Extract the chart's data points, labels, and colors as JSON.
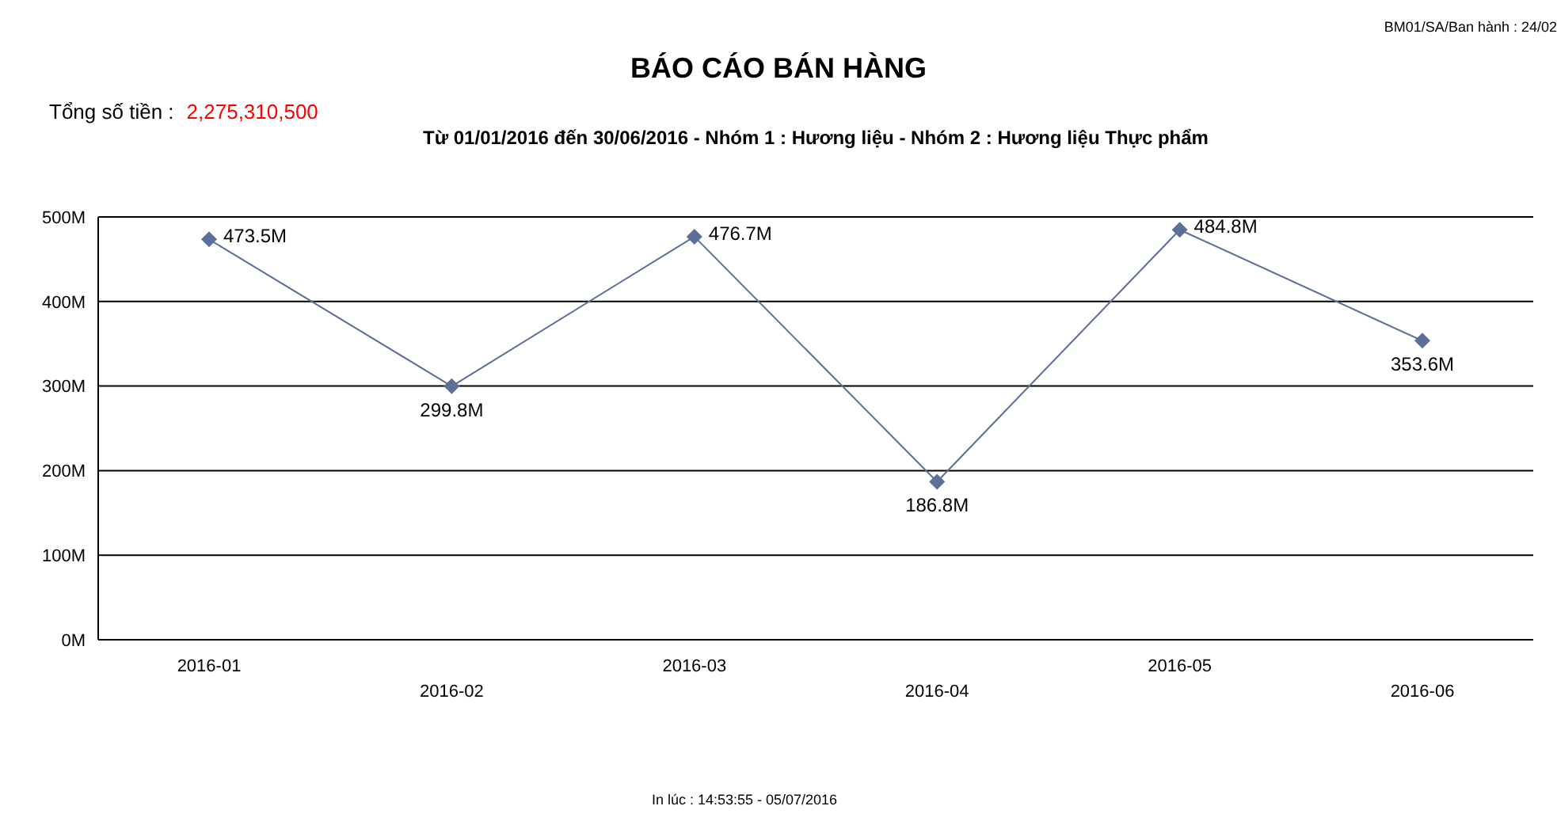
{
  "chart_data": {
    "type": "line",
    "title": "BÁO CÁO BÁN HÀNG",
    "subtitle": "Từ 01/01/2016 đến 30/06/2016 - Nhóm 1 : Hương liệu  - Nhóm 2 : Hương liệu Thực phẩm",
    "annotations": [
      "Tổng số tiền :",
      "2,275,310,500",
      "BM01/SA/Ban hành : 24/02",
      "In lúc : 14:53:55 - 05/07/2016"
    ],
    "categories": [
      "2016-01",
      "2016-02",
      "2016-03",
      "2016-04",
      "2016-05",
      "2016-06"
    ],
    "series": [
      {
        "color": "#5b6f99",
        "values": [
          473.5,
          299.8,
          476.7,
          186.8,
          484.8,
          353.6
        ],
        "value_labels": [
          "473.5M",
          "299.8M",
          "476.7M",
          "186.8M",
          "484.8M",
          "353.6M"
        ]
      }
    ],
    "ylim": [
      0,
      500
    ],
    "yticks": [
      {
        "value": 0,
        "label": "0M"
      },
      {
        "value": 100,
        "label": "100M"
      },
      {
        "value": 200,
        "label": "200M"
      },
      {
        "value": 300,
        "label": "300M"
      },
      {
        "value": 400,
        "label": "400M"
      },
      {
        "value": 500,
        "label": "500M"
      }
    ],
    "grid": "y",
    "legend": false,
    "marker": "diamond",
    "line_style": "solid"
  }
}
